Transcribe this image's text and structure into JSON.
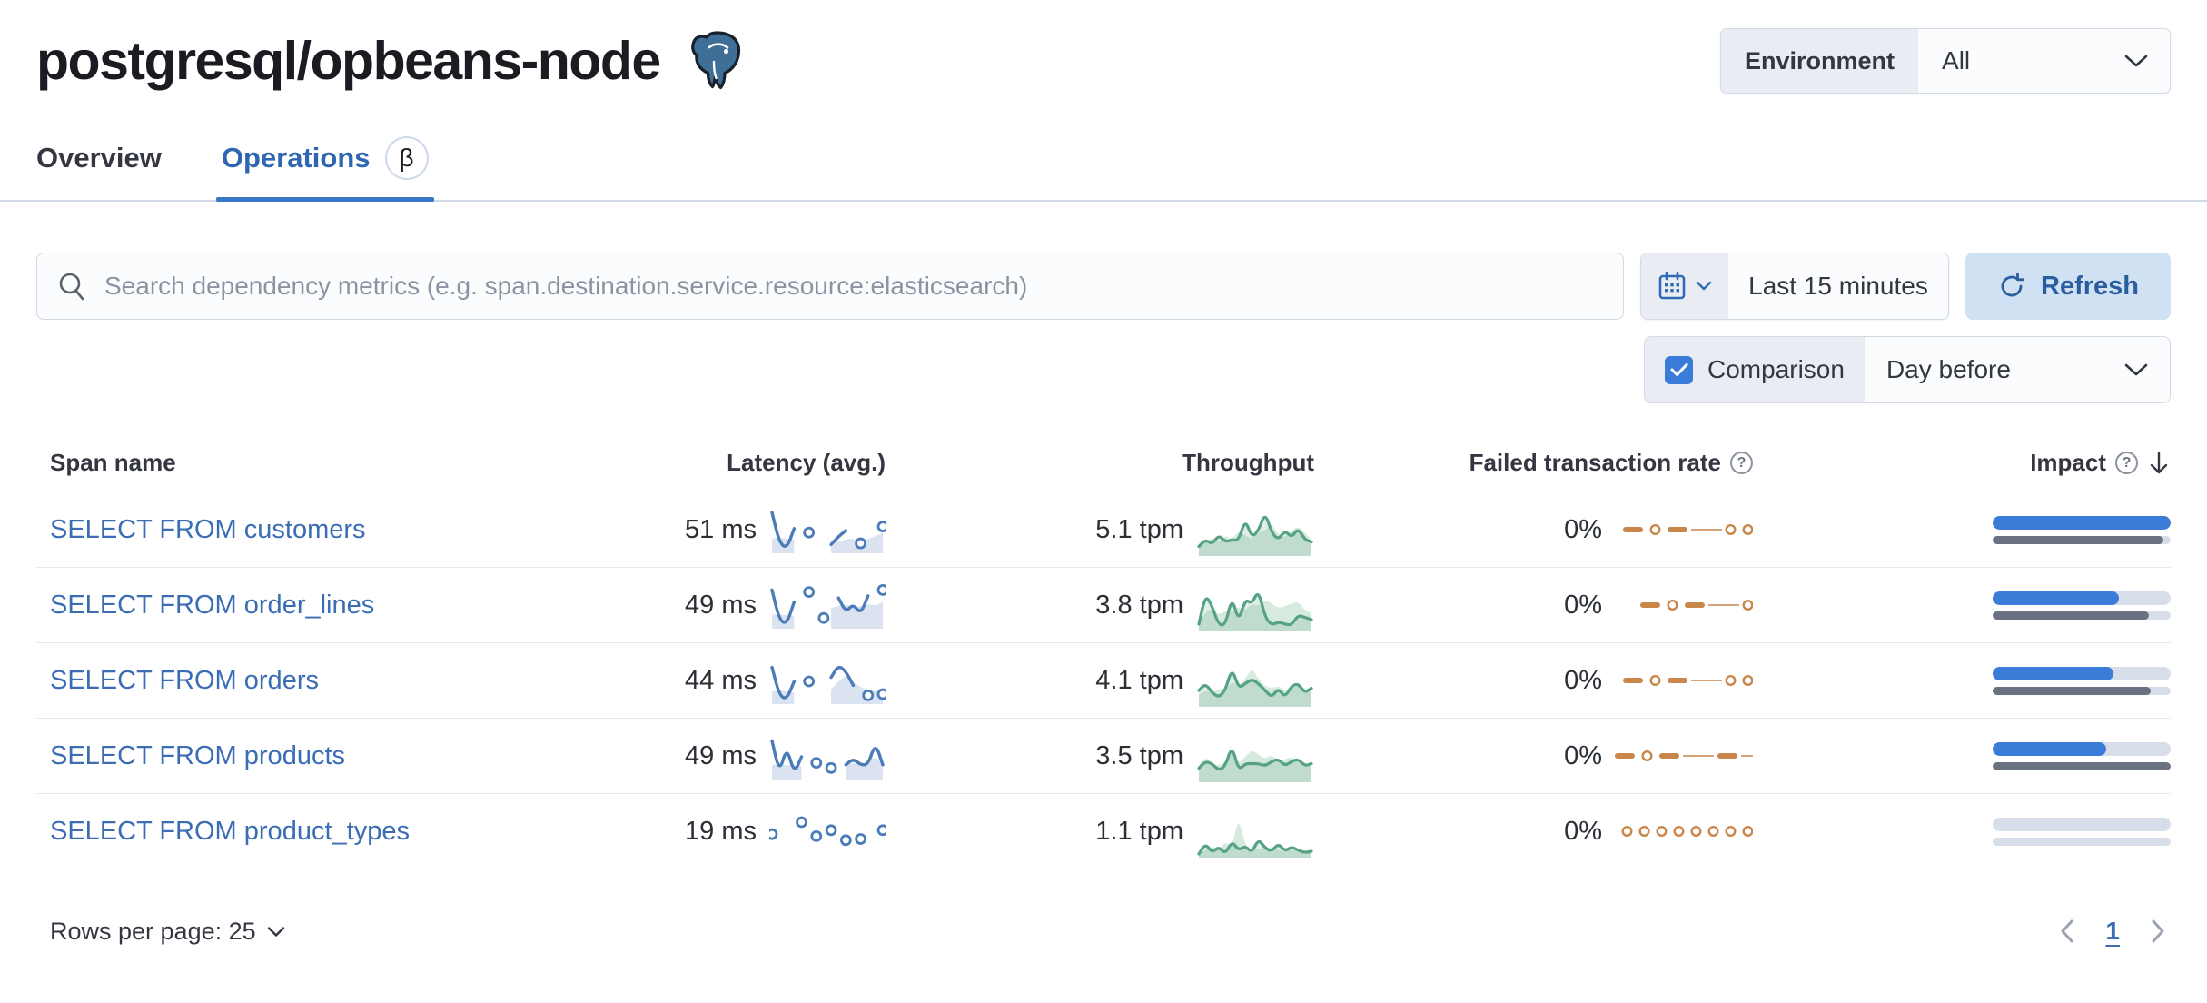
{
  "icons": {
    "question": "?"
  },
  "header": {
    "title": "postgresql/opbeans-node",
    "environment_label": "Environment",
    "environment_value": "All"
  },
  "tabs": [
    {
      "label": "Overview"
    },
    {
      "label": "Operations",
      "badge": "β"
    }
  ],
  "controls": {
    "search_placeholder": "Search dependency metrics (e.g. span.destination.service.resource:elasticsearch)",
    "time_range": "Last 15 minutes",
    "refresh_label": "Refresh",
    "comparison_label": "Comparison",
    "comparison_checked": true,
    "comparison_value": "Day before"
  },
  "table": {
    "columns": {
      "span_name": "Span name",
      "latency": "Latency (avg.)",
      "throughput": "Throughput",
      "failed_rate": "Failed transaction rate",
      "impact": "Impact"
    },
    "rows": [
      {
        "name": "SELECT FROM customers",
        "latency": "51 ms",
        "throughput": "5.1 tpm",
        "failed_rate": "0%",
        "latency_spark": {
          "line": [
            0.95,
            0.2,
            0.05,
            0.55,
            null,
            0.45,
            null,
            null,
            0.15,
            0.35,
            0.5,
            null,
            0.18,
            null,
            null,
            0.6
          ],
          "shadow": [
            0.3,
            0.32,
            0.3,
            0.28,
            null,
            null,
            null,
            null,
            0.25,
            0.22,
            0.28,
            0.3,
            0.22,
            0.3,
            0.35,
            0.45
          ]
        },
        "throughput_spark": {
          "line": [
            0.15,
            0.3,
            0.2,
            0.4,
            0.25,
            0.3,
            0.28,
            0.75,
            0.35,
            0.5,
            0.9,
            0.45,
            0.3,
            0.5,
            0.35,
            0.55,
            0.3,
            0.25
          ],
          "shadow": [
            0.2,
            0.25,
            0.35,
            0.25,
            0.4,
            0.3,
            0.5,
            0.4,
            0.3,
            0.45,
            0.5,
            0.65,
            0.4,
            0.35,
            0.5,
            0.6,
            0.45,
            0.3
          ]
        },
        "failed_spark": [
          "dash",
          "dot",
          "dash",
          "line",
          "dot",
          "dot"
        ],
        "impact": {
          "current": 1.0,
          "previous": 0.96
        }
      },
      {
        "name": "SELECT FROM order_lines",
        "latency": "49 ms",
        "throughput": "3.8 tpm",
        "failed_rate": "0%",
        "latency_spark": {
          "line": [
            0.9,
            0.15,
            0.05,
            0.6,
            null,
            0.85,
            null,
            0.2,
            null,
            0.7,
            0.35,
            0.55,
            0.3,
            0.75,
            null,
            0.9
          ],
          "shadow": [
            0.28,
            0.3,
            0.26,
            0.25,
            null,
            null,
            null,
            null,
            0.45,
            0.5,
            0.55,
            0.45,
            0.5,
            0.55,
            0.5,
            0.6
          ]
        },
        "throughput_spark": {
          "line": [
            0.1,
            0.75,
            0.5,
            0.08,
            0.08,
            0.7,
            0.15,
            0.65,
            0.55,
            0.85,
            0.25,
            0.08,
            0.15,
            0.1,
            0.08,
            0.3,
            0.25,
            0.2
          ],
          "shadow": [
            0.15,
            0.35,
            0.45,
            0.3,
            0.4,
            0.35,
            0.5,
            0.4,
            0.55,
            0.5,
            0.65,
            0.55,
            0.45,
            0.5,
            0.55,
            0.6,
            0.4,
            0.35
          ]
        },
        "failed_spark": [
          "dash",
          "dot",
          "dash",
          "line",
          "dot"
        ],
        "impact": {
          "current": 0.71,
          "previous": 0.88
        }
      },
      {
        "name": "SELECT FROM orders",
        "latency": "44 ms",
        "throughput": "4.1 tpm",
        "failed_rate": "0%",
        "latency_spark": {
          "line": [
            0.85,
            0.15,
            0.05,
            0.5,
            null,
            0.5,
            null,
            null,
            0.6,
            0.9,
            0.75,
            0.4,
            null,
            0.15,
            null,
            0.18
          ],
          "shadow": [
            0.25,
            0.28,
            0.25,
            0.22,
            null,
            null,
            null,
            null,
            0.3,
            0.5,
            0.65,
            0.5,
            0.35,
            0.3,
            0.25,
            0.3
          ]
        },
        "throughput_spark": {
          "line": [
            0.3,
            0.45,
            0.25,
            0.15,
            0.3,
            0.8,
            0.35,
            0.45,
            0.55,
            0.45,
            0.3,
            0.15,
            0.35,
            0.15,
            0.4,
            0.45,
            0.25,
            0.35
          ],
          "shadow": [
            0.2,
            0.3,
            0.25,
            0.35,
            0.3,
            0.5,
            0.4,
            0.55,
            0.8,
            0.55,
            0.4,
            0.35,
            0.4,
            0.3,
            0.35,
            0.4,
            0.3,
            0.25
          ]
        },
        "failed_spark": [
          "dash",
          "dot",
          "dash",
          "line",
          "dot",
          "dot"
        ],
        "impact": {
          "current": 0.68,
          "previous": 0.89
        }
      },
      {
        "name": "SELECT FROM products",
        "latency": "49 ms",
        "throughput": "3.5 tpm",
        "failed_rate": "0%",
        "latency_spark": {
          "line": [
            0.9,
            0.1,
            0.75,
            0.08,
            0.5,
            null,
            0.35,
            null,
            0.22,
            null,
            0.3,
            0.45,
            0.3,
            0.3,
            0.85,
            0.3
          ],
          "shadow": [
            0.3,
            0.32,
            0.28,
            0.3,
            0.26,
            null,
            null,
            null,
            null,
            null,
            0.28,
            0.35,
            0.3,
            0.4,
            0.5,
            0.35
          ]
        },
        "throughput_spark": {
          "line": [
            0.25,
            0.4,
            0.35,
            0.2,
            0.3,
            0.75,
            0.2,
            0.35,
            0.35,
            0.35,
            0.3,
            0.4,
            0.45,
            0.3,
            0.4,
            0.45,
            0.3,
            0.35
          ],
          "shadow": [
            0.3,
            0.5,
            0.35,
            0.3,
            0.4,
            0.6,
            0.35,
            0.5,
            0.65,
            0.55,
            0.45,
            0.55,
            0.4,
            0.45,
            0.5,
            0.4,
            0.35,
            0.3
          ]
        },
        "failed_spark": [
          "dash",
          "dot",
          "dash",
          "line",
          "dash",
          "line"
        ],
        "impact": {
          "current": 0.64,
          "previous": 1.0
        }
      },
      {
        "name": "SELECT FROM product_types",
        "latency": "19 ms",
        "throughput": "1.1 tpm",
        "failed_rate": "0%",
        "latency_spark": {
          "line": [
            0.45,
            null,
            null,
            null,
            0.75,
            null,
            0.4,
            null,
            0.55,
            null,
            0.3,
            null,
            0.33,
            null,
            null,
            0.55
          ],
          "shadow": []
        },
        "throughput_spark": {
          "line": [
            0.02,
            0.25,
            0.05,
            0.18,
            0.02,
            0.3,
            0.1,
            0.2,
            0.05,
            0.35,
            0.15,
            0.08,
            0.25,
            0.08,
            0.18,
            0.1,
            0.05,
            0.08
          ],
          "shadow": [
            0.05,
            0.1,
            0.2,
            0.1,
            0.3,
            0.15,
            0.85,
            0.2,
            0.1,
            0.15,
            0.1,
            0.2,
            0.1,
            0.08,
            0.12,
            0.08,
            0.05,
            0.05
          ]
        },
        "failed_spark": [
          "dot",
          "dot",
          "dot",
          "dot",
          "dot",
          "dot",
          "dot",
          "dot"
        ],
        "impact": {
          "current": 0,
          "previous": 0
        }
      }
    ]
  },
  "footer": {
    "rows_per_page": "Rows per page: 25",
    "page": "1"
  },
  "colors": {
    "primary_blue": "#3a6db4",
    "impact_blue": "#3b7cd8",
    "impact_grey": "#6a7180",
    "latency_line": "#4c7cb8",
    "latency_shadow": "#dbe3f0",
    "throughput_line": "#55a284",
    "throughput_shadow": "#d7eade",
    "failed_orange": "#c9864b"
  }
}
